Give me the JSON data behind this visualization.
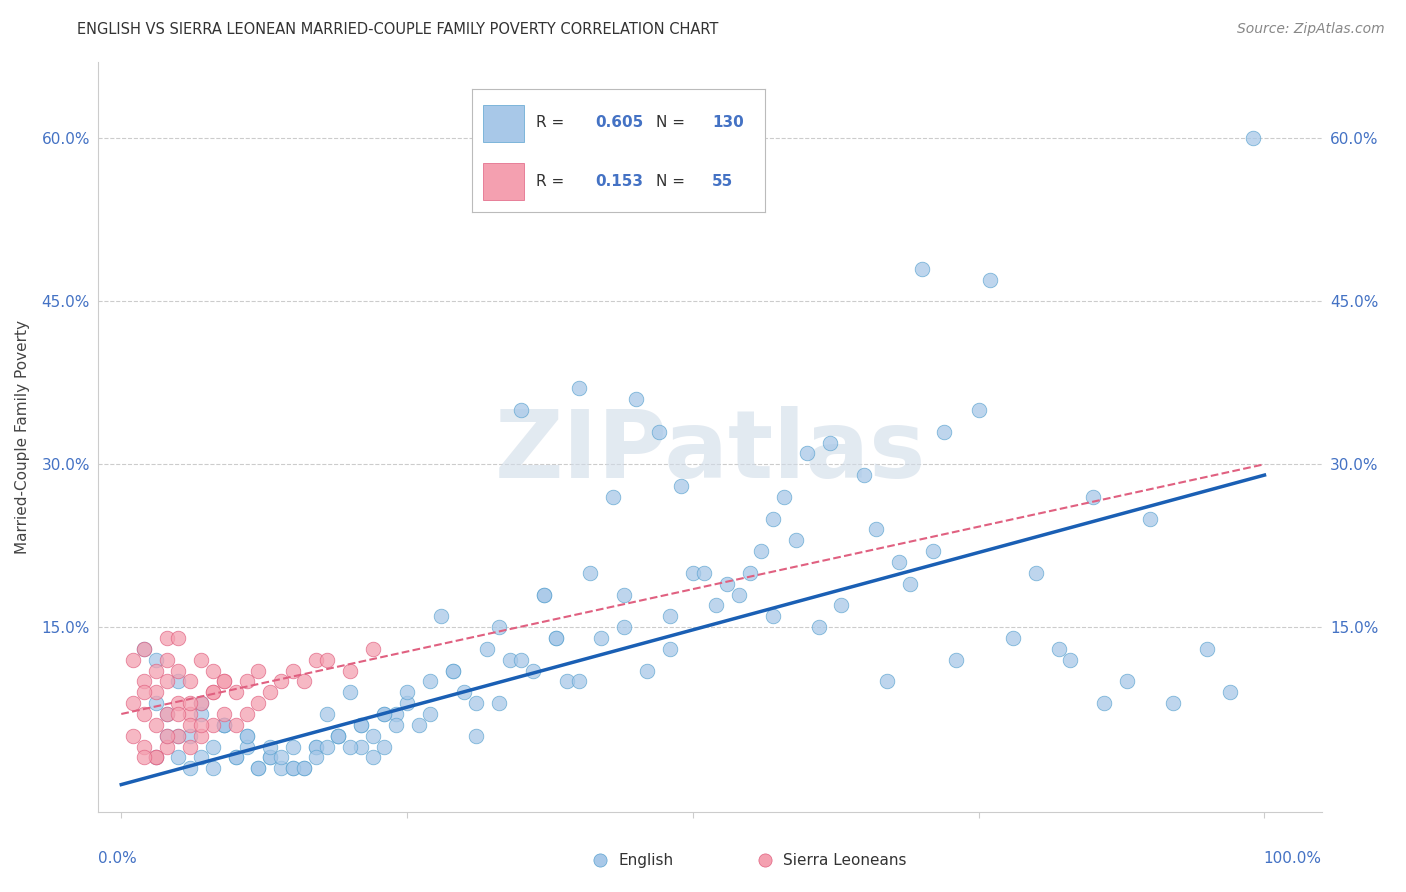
{
  "title": "ENGLISH VS SIERRA LEONEAN MARRIED-COUPLE FAMILY POVERTY CORRELATION CHART",
  "source": "Source: ZipAtlas.com",
  "ylabel": "Married-Couple Family Poverty",
  "ytick_values": [
    0.0,
    0.15,
    0.3,
    0.45,
    0.6
  ],
  "ytick_labels": [
    "",
    "15.0%",
    "30.0%",
    "45.0%",
    "60.0%"
  ],
  "xlim": [
    -0.02,
    1.05
  ],
  "ylim": [
    -0.02,
    0.67
  ],
  "english_color": "#a8c8e8",
  "english_edge_color": "#5ba3d0",
  "sierra_color": "#f4a0b0",
  "sierra_edge_color": "#e06080",
  "blue_line_color": "#1a5fb4",
  "pink_line_color": "#e06080",
  "grid_color": "#cccccc",
  "watermark": "ZIPatlas",
  "watermark_color": "#d0dce8",
  "R_english": "0.605",
  "N_english": "130",
  "R_sierra": "0.153",
  "N_sierra": "55",
  "legend_label_english": "English",
  "legend_label_sierra": "Sierra Leoneans",
  "blue_line_x": [
    0.0,
    1.0
  ],
  "blue_line_y": [
    0.005,
    0.29
  ],
  "pink_line_x": [
    0.0,
    1.0
  ],
  "pink_line_y": [
    0.07,
    0.3
  ],
  "eng_x": [
    0.99,
    0.76,
    0.45,
    0.47,
    0.4,
    0.35,
    0.38,
    0.52,
    0.53,
    0.55,
    0.58,
    0.6,
    0.62,
    0.65,
    0.67,
    0.68,
    0.7,
    0.72,
    0.75,
    0.48,
    0.5,
    0.42,
    0.43,
    0.44,
    0.46,
    0.49,
    0.51,
    0.54,
    0.56,
    0.28,
    0.3,
    0.32,
    0.33,
    0.34,
    0.36,
    0.37,
    0.39,
    0.41,
    0.18,
    0.19,
    0.2,
    0.21,
    0.22,
    0.23,
    0.24,
    0.25,
    0.26,
    0.27,
    0.29,
    0.31,
    0.1,
    0.11,
    0.12,
    0.13,
    0.14,
    0.15,
    0.16,
    0.17,
    0.04,
    0.05,
    0.06,
    0.07,
    0.08,
    0.09,
    0.02,
    0.03,
    0.8,
    0.82,
    0.85,
    0.88,
    0.9,
    0.92,
    0.95,
    0.97,
    0.78,
    0.83,
    0.86,
    0.73,
    0.71,
    0.69,
    0.66,
    0.63,
    0.61,
    0.59,
    0.57,
    0.57,
    0.48,
    0.44,
    0.4,
    0.38,
    0.37,
    0.35,
    0.33,
    0.31,
    0.29,
    0.27,
    0.25,
    0.23,
    0.21,
    0.19,
    0.17,
    0.15,
    0.13,
    0.11,
    0.09,
    0.07,
    0.05,
    0.03,
    0.03,
    0.04,
    0.05,
    0.06,
    0.07,
    0.08,
    0.09,
    0.1,
    0.11,
    0.12,
    0.13,
    0.14,
    0.15,
    0.16,
    0.17,
    0.18,
    0.19,
    0.2,
    0.21,
    0.22,
    0.23,
    0.24
  ],
  "eng_y": [
    0.6,
    0.47,
    0.36,
    0.33,
    0.37,
    0.35,
    0.14,
    0.17,
    0.19,
    0.2,
    0.27,
    0.31,
    0.32,
    0.29,
    0.1,
    0.21,
    0.48,
    0.33,
    0.35,
    0.13,
    0.2,
    0.14,
    0.27,
    0.15,
    0.11,
    0.28,
    0.2,
    0.18,
    0.22,
    0.16,
    0.09,
    0.13,
    0.08,
    0.12,
    0.11,
    0.18,
    0.1,
    0.2,
    0.07,
    0.05,
    0.09,
    0.04,
    0.03,
    0.04,
    0.07,
    0.08,
    0.06,
    0.1,
    0.11,
    0.05,
    0.03,
    0.05,
    0.02,
    0.03,
    0.02,
    0.02,
    0.02,
    0.04,
    0.05,
    0.03,
    0.02,
    0.03,
    0.02,
    0.06,
    0.13,
    0.08,
    0.2,
    0.13,
    0.27,
    0.1,
    0.25,
    0.08,
    0.13,
    0.09,
    0.14,
    0.12,
    0.08,
    0.12,
    0.22,
    0.19,
    0.24,
    0.17,
    0.15,
    0.23,
    0.16,
    0.25,
    0.16,
    0.18,
    0.1,
    0.14,
    0.18,
    0.12,
    0.15,
    0.08,
    0.11,
    0.07,
    0.09,
    0.07,
    0.06,
    0.05,
    0.04,
    0.04,
    0.03,
    0.04,
    0.06,
    0.07,
    0.05,
    0.03,
    0.12,
    0.07,
    0.1,
    0.05,
    0.08,
    0.04,
    0.06,
    0.03,
    0.05,
    0.02,
    0.04,
    0.03,
    0.02,
    0.02,
    0.03,
    0.04,
    0.05,
    0.04,
    0.06,
    0.05,
    0.07,
    0.06
  ],
  "sie_x": [
    0.01,
    0.01,
    0.01,
    0.02,
    0.02,
    0.02,
    0.02,
    0.03,
    0.03,
    0.03,
    0.03,
    0.04,
    0.04,
    0.04,
    0.04,
    0.04,
    0.05,
    0.05,
    0.05,
    0.05,
    0.06,
    0.06,
    0.06,
    0.06,
    0.07,
    0.07,
    0.07,
    0.08,
    0.08,
    0.08,
    0.09,
    0.09,
    0.1,
    0.1,
    0.11,
    0.11,
    0.12,
    0.12,
    0.13,
    0.14,
    0.15,
    0.16,
    0.17,
    0.18,
    0.2,
    0.22,
    0.03,
    0.04,
    0.05,
    0.06,
    0.07,
    0.08,
    0.09,
    0.02,
    0.02
  ],
  "sie_y": [
    0.05,
    0.08,
    0.12,
    0.04,
    0.07,
    0.1,
    0.13,
    0.03,
    0.06,
    0.09,
    0.11,
    0.04,
    0.07,
    0.1,
    0.12,
    0.14,
    0.05,
    0.08,
    0.11,
    0.14,
    0.04,
    0.07,
    0.1,
    0.06,
    0.05,
    0.08,
    0.12,
    0.06,
    0.09,
    0.11,
    0.07,
    0.1,
    0.06,
    0.09,
    0.07,
    0.1,
    0.08,
    0.11,
    0.09,
    0.1,
    0.11,
    0.1,
    0.12,
    0.12,
    0.11,
    0.13,
    0.03,
    0.05,
    0.07,
    0.08,
    0.06,
    0.09,
    0.1,
    0.03,
    0.09
  ]
}
